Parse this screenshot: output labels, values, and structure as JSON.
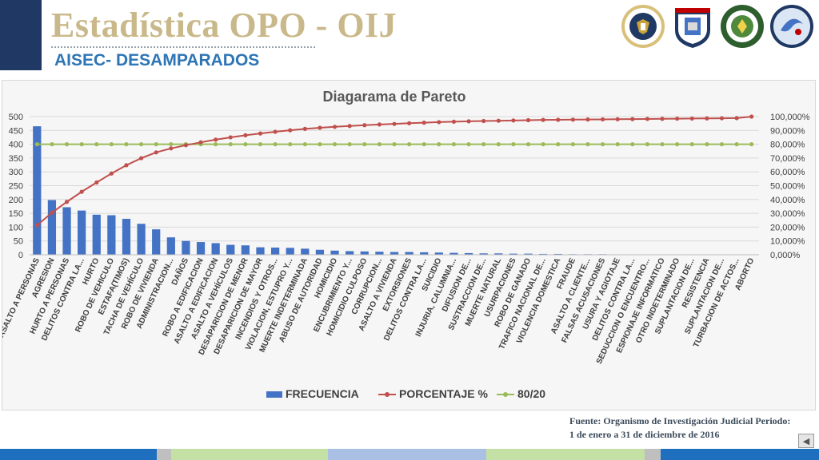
{
  "header": {
    "title": "Estadística OPO - OIJ",
    "subtitle": "AISEC- DESAMPARADOS"
  },
  "logos": [
    {
      "name": "us-embassy-seal",
      "text": "EMBASSY"
    },
    {
      "name": "fuerza-publica-logo",
      "text": "FUERZA PUBLICA"
    },
    {
      "name": "police-emblem",
      "text": ""
    },
    {
      "name": "aisec-logo",
      "text": ""
    }
  ],
  "source": {
    "line1": "Fuente: Organismo de Investigación Judicial Periodo:",
    "line2": "1 de enero a 31 de diciembre de 2016"
  },
  "colors": {
    "bar": "#4472c4",
    "percent_line": "#c0504d",
    "threshold_line": "#9bbb59",
    "title": "#c9b98a",
    "subtitle": "#2e75b6"
  },
  "chart_data": {
    "type": "bar",
    "title": "Diagarama de Pareto",
    "categories": [
      "ASALTO A PERSONAS",
      "AGRESION",
      "HURTO A PERSONAS",
      "DELITOS CONTRA LA...",
      "HURTO",
      "ROBO DE VEHICULO",
      "ESTAFA(TIMOS)",
      "TACHA DE VEHÍCULO",
      "ROBO DE VIVIENDA",
      "ADMINISTRACION...",
      "DAÑOS",
      "ROBO A EDIFICACION",
      "ASALTO A EDIFICACION",
      "ASALTO A VEHÍCULOS",
      "DESAPARICION DE MENOR",
      "DESAPARICION DE MAYOR",
      "INCENDIOS Y OTROS...",
      "VIOLACION, ESTUPRO Y...",
      "MUERTE INDETERMINADA",
      "ABUSO DE AUTORIDAD",
      "HOMICIDIO",
      "ENCUBRIMIENTO Y...",
      "HOMICIDIO CULPOSO",
      "CORRUPCION...",
      "ASALTO A VIVIENDA",
      "EXTORSIONES",
      "DELITOS CONTRA LA...",
      "SUICIDIO",
      "INJURIA, CALUMNIA...",
      "DIFUSION DE...",
      "SUSTRACCION DE...",
      "MUERTE NATURAL",
      "USURPACIONES",
      "ROBO DE GANADO",
      "TRAFICO NACIONAL DE...",
      "VIOLENCIA DOMESTICA",
      "FRAUDE",
      "ASALTO A CLIENTE...",
      "FALSAS ACUSACIONES",
      "USURA Y AGIOTAJE",
      "DELITOS CONTRA LA...",
      "SEDUCCION O ENCUENTRO...",
      "ESPIONAJE INFORMATICO",
      "OTRO INDETERMINADO",
      "SUPLANTACION DE...",
      "RESISTENCIA",
      "SUPLANTACION DE...",
      "TURBACION DE ACTOS...",
      "ABORTO"
    ],
    "series": [
      {
        "name": "FRECUENCIA",
        "type": "bar",
        "axis": "left",
        "values": [
          465,
          198,
          172,
          160,
          145,
          143,
          130,
          112,
          92,
          63,
          50,
          46,
          42,
          36,
          34,
          27,
          26,
          25,
          22,
          18,
          15,
          13,
          12,
          11,
          10,
          10,
          9,
          8,
          7,
          6,
          5,
          5,
          4,
          4,
          3,
          3,
          2,
          2,
          2,
          1,
          1,
          1,
          1,
          1,
          1,
          1,
          1,
          1,
          1
        ]
      },
      {
        "name": "PORCENTAJE %",
        "type": "line",
        "axis": "right",
        "values": [
          21.3,
          30.4,
          38.3,
          45.6,
          52.3,
          58.8,
          64.8,
          69.9,
          74.1,
          77.0,
          79.3,
          81.4,
          83.3,
          85.0,
          86.5,
          87.8,
          89.0,
          90.1,
          91.1,
          91.9,
          92.6,
          93.2,
          93.8,
          94.3,
          94.7,
          95.2,
          95.6,
          96.0,
          96.3,
          96.6,
          96.8,
          97.0,
          97.2,
          97.4,
          97.6,
          97.7,
          97.8,
          97.9,
          98.0,
          98.1,
          98.2,
          98.3,
          98.4,
          98.5,
          98.6,
          98.7,
          98.8,
          98.9,
          100.0
        ]
      },
      {
        "name": "80/20",
        "type": "line",
        "axis": "right",
        "constant": 80
      }
    ],
    "ylim": [
      0,
      500
    ],
    "yticks": [
      "0",
      "50",
      "100",
      "150",
      "200",
      "250",
      "300",
      "350",
      "400",
      "450",
      "500"
    ],
    "y2lim": [
      0,
      100
    ],
    "y2ticks": [
      "0,000%",
      "10,000%",
      "20,000%",
      "30,000%",
      "40,000%",
      "50,000%",
      "60,000%",
      "70,000%",
      "80,000%",
      "90,000%",
      "100,000%"
    ],
    "grid": true,
    "legend": "bottom"
  }
}
